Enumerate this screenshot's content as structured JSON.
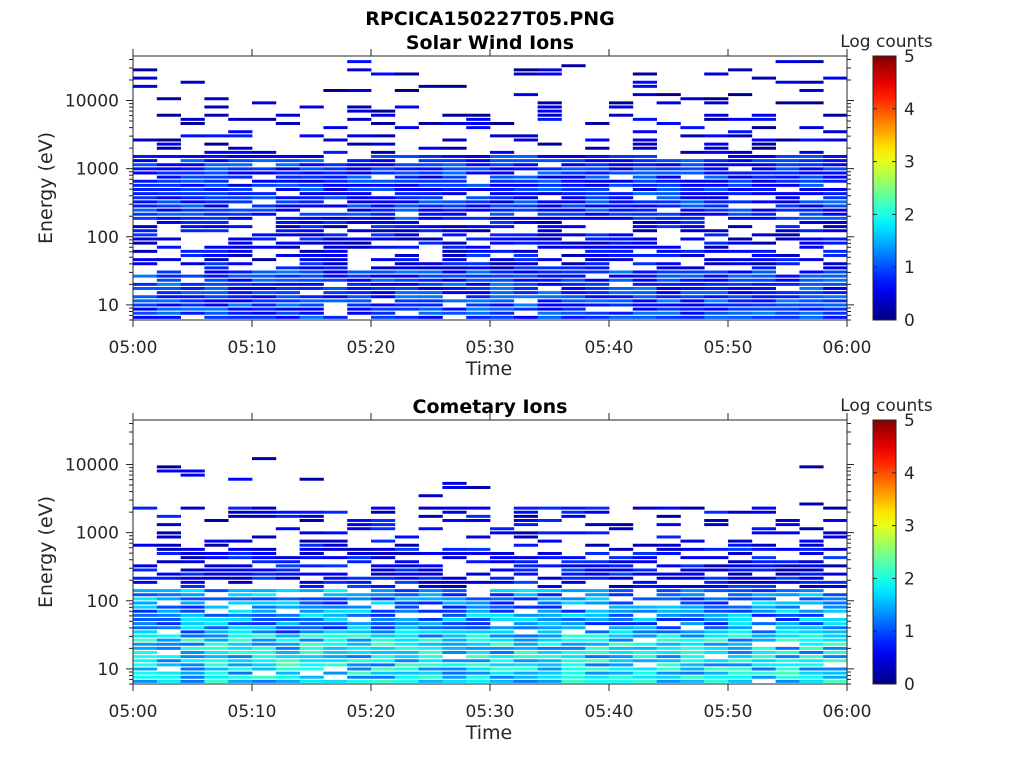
{
  "figure": {
    "title": "RPCICA150227T05.PNG"
  },
  "chart_data": [
    {
      "type": "heatmap",
      "title": "Solar Wind Ions",
      "xlabel": "Time",
      "ylabel": "Energy (eV)",
      "x_tick_labels": [
        "05:00",
        "05:10",
        "05:20",
        "05:30",
        "05:40",
        "05:50",
        "06:00"
      ],
      "y_tick_labels": [
        "10",
        "100",
        "1000",
        "10000"
      ],
      "y_ticks": [
        10,
        100,
        1000,
        10000
      ],
      "y_scale": "log",
      "ylim": [
        6,
        45000
      ],
      "xlim_minutes": [
        0,
        60
      ],
      "colorbar": {
        "label": "Log counts",
        "ticks": [
          "0",
          "1",
          "2",
          "3",
          "4",
          "5"
        ],
        "range": [
          0,
          5
        ],
        "colormap": "jet"
      },
      "time_bins_min": 30,
      "bands": [
        {
          "e_min": 6,
          "e_max": 30,
          "level": 0.9,
          "coverage": 0.95
        },
        {
          "e_min": 30,
          "e_max": 180,
          "level": 0.55,
          "coverage": 0.6
        },
        {
          "e_min": 180,
          "e_max": 1600,
          "level": 0.8,
          "coverage": 0.9
        },
        {
          "e_min": 1600,
          "e_max": 6000,
          "level": 0.4,
          "coverage": 0.3
        },
        {
          "e_min": 6000,
          "e_max": 40000,
          "level": 0.35,
          "coverage": 0.12
        }
      ]
    },
    {
      "type": "heatmap",
      "title": "Cometary Ions",
      "xlabel": "Time",
      "ylabel": "Energy (eV)",
      "x_tick_labels": [
        "05:00",
        "05:10",
        "05:20",
        "05:30",
        "05:40",
        "05:50",
        "06:00"
      ],
      "y_tick_labels": [
        "10",
        "100",
        "1000",
        "10000"
      ],
      "y_ticks": [
        10,
        100,
        1000,
        10000
      ],
      "y_scale": "log",
      "ylim": [
        6,
        45000
      ],
      "xlim_minutes": [
        0,
        60
      ],
      "colorbar": {
        "label": "Log counts",
        "ticks": [
          "0",
          "1",
          "2",
          "3",
          "4",
          "5"
        ],
        "range": [
          0,
          5
        ],
        "colormap": "jet"
      },
      "time_bins_min": 30,
      "bands": [
        {
          "e_min": 6,
          "e_max": 30,
          "level": 1.7,
          "coverage": 0.97
        },
        {
          "e_min": 30,
          "e_max": 150,
          "level": 1.3,
          "coverage": 0.85
        },
        {
          "e_min": 150,
          "e_max": 600,
          "level": 0.6,
          "coverage": 0.7
        },
        {
          "e_min": 600,
          "e_max": 2500,
          "level": 0.5,
          "coverage": 0.35
        },
        {
          "e_min": 2500,
          "e_max": 15000,
          "level": 0.3,
          "coverage": 0.04
        }
      ]
    }
  ]
}
